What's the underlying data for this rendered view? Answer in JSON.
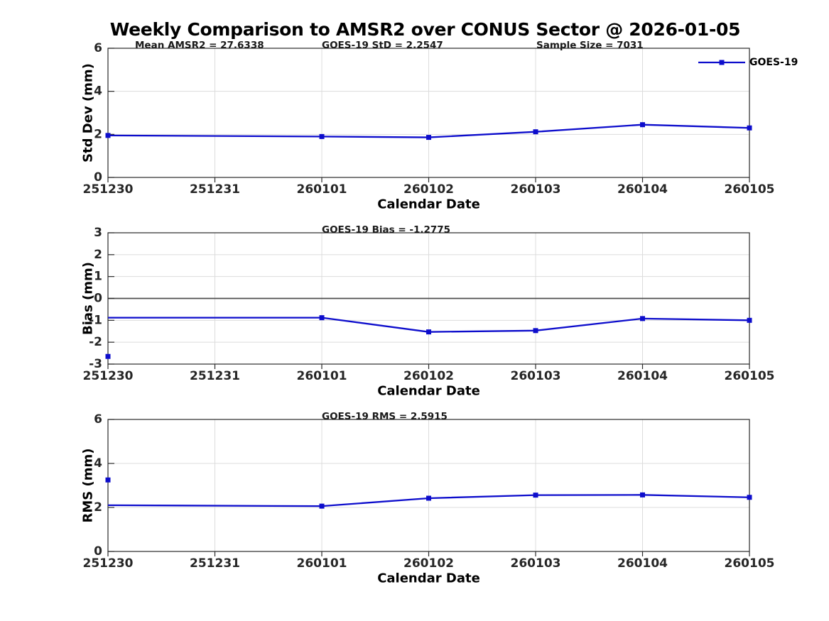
{
  "colors": {
    "line_color": "#0d0dcc",
    "zero_line_color": "#4d4d4d",
    "axis_color": "#2a2a2a",
    "grid_color": "#dcdcdc",
    "title_color": "#000000",
    "tick_label_color": "#262626",
    "annotation_color": "#1a1a1a",
    "background": "#ffffff"
  },
  "chart_data": {
    "type": "line",
    "title": "Weekly Comparison to AMSR2 over CONUS Sector @ 2026-01-05",
    "xlabel": "Calendar Date",
    "x_categories": [
      "251230",
      "251231",
      "260101",
      "260102",
      "260103",
      "260104",
      "260105"
    ],
    "grid": true,
    "legend": {
      "label": "GOES-19",
      "position": "top-right"
    },
    "panels": [
      {
        "id": "stddev",
        "ylabel": "Std Dev (mm)",
        "ylim": [
          0,
          6
        ],
        "yticks": [
          0,
          2,
          4,
          6
        ],
        "zero_line": false,
        "show_legend": true,
        "annotations": [
          {
            "text": "Mean AMSR2 = 27.6338"
          },
          {
            "text": "GOES-19 StD = 2.2547"
          },
          {
            "text": "Sample Size = 7031"
          }
        ],
        "line": {
          "x": [
            "251230",
            "260101",
            "260102",
            "260103",
            "260104",
            "260105"
          ],
          "y": [
            1.95,
            1.9,
            1.86,
            2.12,
            2.45,
            2.3
          ],
          "markers": [
            true,
            true,
            true,
            true,
            true,
            true
          ]
        },
        "isolated_points": []
      },
      {
        "id": "bias",
        "ylabel": "Bias (mm)",
        "ylim": [
          -3,
          3
        ],
        "yticks": [
          -3,
          -2,
          -1,
          0,
          1,
          2,
          3
        ],
        "zero_line": true,
        "show_legend": false,
        "annotations": [
          {
            "text": "GOES-19 Bias  = -1.2775"
          }
        ],
        "line": {
          "x": [
            "251230",
            "260101",
            "260102",
            "260103",
            "260104",
            "260105"
          ],
          "y": [
            -0.88,
            -0.88,
            -1.53,
            -1.47,
            -0.92,
            -1.0
          ],
          "markers": [
            false,
            true,
            true,
            true,
            true,
            true
          ]
        },
        "isolated_points": [
          {
            "x": "251230",
            "y": -2.65
          }
        ]
      },
      {
        "id": "rms",
        "ylabel": "RMS (mm)",
        "ylim": [
          0,
          6
        ],
        "yticks": [
          0,
          2,
          4,
          6
        ],
        "zero_line": false,
        "show_legend": false,
        "annotations": [
          {
            "text": "GOES-19 RMS = 2.5915"
          }
        ],
        "line": {
          "x": [
            "251230",
            "260101",
            "260102",
            "260103",
            "260104",
            "260105"
          ],
          "y": [
            2.1,
            2.06,
            2.42,
            2.56,
            2.57,
            2.46
          ],
          "markers": [
            false,
            true,
            true,
            true,
            true,
            true
          ]
        },
        "isolated_points": [
          {
            "x": "251230",
            "y": 3.25
          }
        ]
      }
    ]
  }
}
